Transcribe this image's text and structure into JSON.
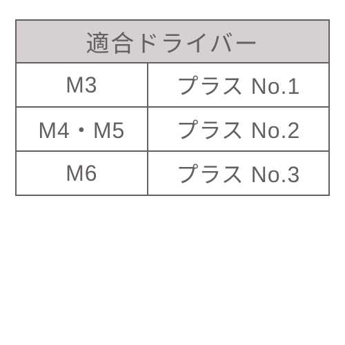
{
  "table": {
    "header": "適合ドライバー",
    "header_bg": "#d7d0d1",
    "border_color": "#655f60",
    "text_color": "#655f60",
    "header_fontsize": 34,
    "cell_fontsize": 32,
    "col_widths_pct": [
      42,
      58
    ],
    "columns": [
      "size",
      "driver"
    ],
    "rows": [
      {
        "size": "M3",
        "driver": "プラス No.1"
      },
      {
        "size": "M4・M5",
        "driver": "プラス No.2"
      },
      {
        "size": "M6",
        "driver": "プラス No.3"
      }
    ]
  }
}
